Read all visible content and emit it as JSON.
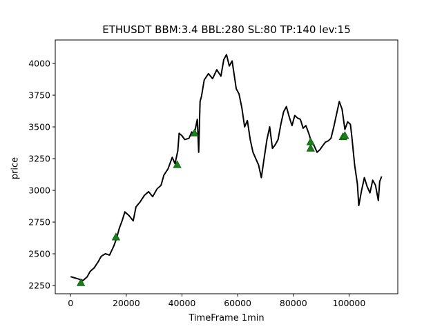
{
  "chart_data": {
    "type": "line",
    "title": "ETHUSDT BBM:3.4 BBL:280 SL:80 TP:140 lev:15",
    "xlabel": "TimeFrame 1min",
    "ylabel": "price",
    "xlim": [
      -5500,
      117500
    ],
    "ylim": [
      2185,
      4185
    ],
    "xticks": [
      0,
      20000,
      40000,
      60000,
      80000,
      100000
    ],
    "yticks": [
      2250,
      2500,
      2750,
      3000,
      3250,
      3500,
      3750,
      4000
    ],
    "series": [
      {
        "color": "#000000",
        "x": [
          0,
          1500,
          3000,
          4500,
          6000,
          7000,
          8500,
          10000,
          11000,
          12500,
          14000,
          15500,
          16500,
          17500,
          18500,
          19500,
          21000,
          22500,
          23500,
          25000,
          26500,
          28000,
          29500,
          31000,
          32500,
          33500,
          35000,
          36500,
          37500,
          38500,
          39000,
          40000,
          41000,
          42500,
          43500,
          44500,
          45500,
          46000,
          46500,
          47000,
          48000,
          49500,
          51000,
          52500,
          54000,
          55000,
          56000,
          57000,
          58000,
          59500,
          60500,
          61500,
          62500,
          63500,
          64500,
          65500,
          66500,
          67500,
          68500,
          69500,
          70500,
          71500,
          72500,
          73500,
          74500,
          75500,
          76500,
          77500,
          78500,
          79500,
          80500,
          81500,
          82500,
          83500,
          84500,
          85500,
          86500,
          87500,
          88500,
          89500,
          90500,
          91500,
          92500,
          93500,
          94500,
          95500,
          96500,
          97500,
          98500,
          99500,
          100500,
          101000,
          102000,
          103000,
          103500,
          104500,
          105500,
          106500,
          107500,
          108500,
          109500,
          110500,
          111000,
          111700
        ],
        "y": [
          2320,
          2310,
          2300,
          2290,
          2320,
          2360,
          2390,
          2440,
          2480,
          2500,
          2490,
          2560,
          2620,
          2700,
          2760,
          2830,
          2800,
          2760,
          2870,
          2910,
          2960,
          2990,
          2950,
          3010,
          3040,
          3120,
          3170,
          3260,
          3210,
          3310,
          3450,
          3430,
          3400,
          3410,
          3460,
          3450,
          3560,
          3300,
          3700,
          3740,
          3870,
          3920,
          3880,
          3950,
          3900,
          4030,
          4070,
          3980,
          4020,
          3800,
          3760,
          3650,
          3500,
          3550,
          3400,
          3300,
          3250,
          3200,
          3100,
          3250,
          3400,
          3500,
          3330,
          3360,
          3400,
          3520,
          3620,
          3660,
          3580,
          3510,
          3590,
          3570,
          3560,
          3490,
          3510,
          3450,
          3380,
          3350,
          3300,
          3320,
          3350,
          3380,
          3390,
          3410,
          3500,
          3600,
          3700,
          3640,
          3480,
          3540,
          3520,
          3420,
          3200,
          3050,
          2880,
          3000,
          3100,
          3030,
          2980,
          3080,
          3040,
          2920,
          3070,
          3110
        ]
      }
    ],
    "markers": {
      "shape": "triangle-up",
      "color": "#1a7f1a",
      "x": [
        3700,
        16300,
        38300,
        44500,
        86200,
        86200,
        97800,
        98500
      ],
      "y": [
        2270,
        2630,
        3200,
        3450,
        3330,
        3380,
        3420,
        3430
      ]
    }
  }
}
